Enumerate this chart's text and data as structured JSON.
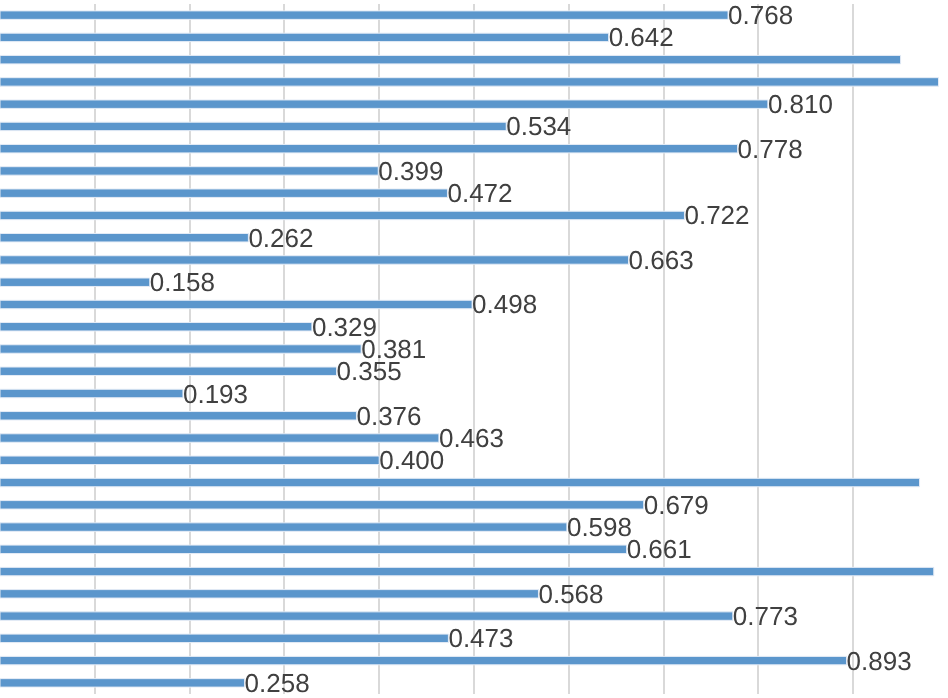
{
  "chart_data": {
    "type": "bar",
    "orientation": "horizontal",
    "categories": [
      null,
      null,
      null,
      null,
      null,
      null,
      null,
      null,
      null,
      null,
      null,
      null,
      null,
      null,
      null,
      null,
      null,
      null,
      null,
      null,
      null,
      null,
      null,
      null,
      null,
      null,
      null,
      null,
      null,
      null,
      null
    ],
    "values": [
      0.768,
      0.642,
      0.95,
      0.99,
      0.81,
      0.534,
      0.778,
      0.399,
      0.472,
      0.722,
      0.262,
      0.663,
      0.158,
      0.498,
      0.329,
      0.381,
      0.355,
      0.193,
      0.376,
      0.463,
      0.4,
      0.97,
      0.679,
      0.598,
      0.661,
      0.985,
      0.568,
      0.773,
      0.473,
      0.893,
      0.258
    ],
    "value_labels": [
      "0.768",
      "0.642",
      null,
      null,
      "0.810",
      "0.534",
      "0.778",
      "0.399",
      "0.472",
      "0.722",
      "0.262",
      "0.663",
      "0.158",
      "0.498",
      "0.329",
      "0.381",
      "0.355",
      "0.193",
      "0.376",
      "0.463",
      "0.400",
      null,
      "0.679",
      "0.598",
      "0.661",
      null,
      "0.568",
      "0.773",
      "0.473",
      "0.893",
      "0.258"
    ],
    "color": "#5b96cc",
    "xlim": [
      0,
      1.0
    ],
    "xticks": [
      {
        "value": 0.1,
        "label": null
      },
      {
        "value": 0.2,
        "label": null
      },
      {
        "value": 0.3,
        "label": null
      },
      {
        "value": 0.4,
        "label": null
      },
      {
        "value": 0.5,
        "label": null
      },
      {
        "value": 0.6,
        "label": null
      },
      {
        "value": 0.7,
        "label": null
      },
      {
        "value": 0.8,
        "label": null
      },
      {
        "value": 0.9,
        "label": null
      }
    ],
    "grid": "x"
  }
}
